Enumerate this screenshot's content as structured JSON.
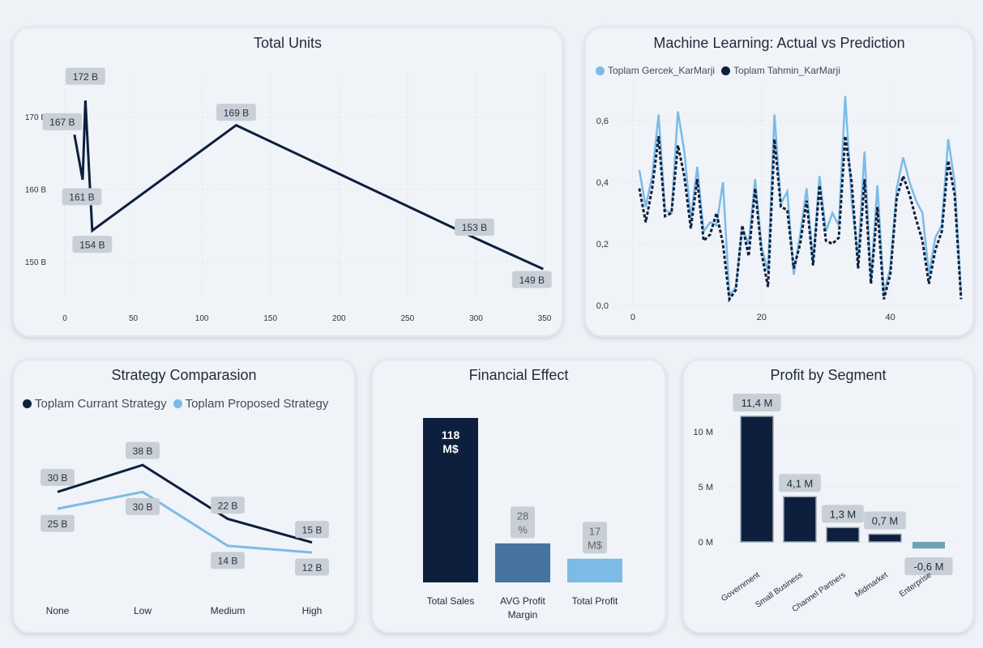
{
  "colors": {
    "dark": "#0d1f3c",
    "light": "#7bbbe6",
    "mid": "#46739f",
    "neg": "#6da3b4",
    "label_bg": "#c9cfd7",
    "grid": "#cfd5de"
  },
  "total_units": {
    "title": "Total Units",
    "chart_data": {
      "type": "line",
      "x": [
        7,
        13,
        15,
        20,
        125,
        300,
        349
      ],
      "y": [
        167.5,
        161.3,
        172.2,
        154.3,
        168.8,
        153.2,
        149.0
      ],
      "data_labels": [
        "167 B",
        "161 B",
        "172 B",
        "154 B",
        "169 B",
        "153 B",
        "149 B"
      ],
      "x_ticks": [
        "0",
        "50",
        "100",
        "150",
        "200",
        "250",
        "300",
        "350"
      ],
      "y_ticks": [
        "150 B",
        "160 B",
        "170 B"
      ],
      "xlim": [
        0,
        350
      ],
      "ylim": [
        145,
        175
      ]
    }
  },
  "ml": {
    "title": "Machine Learning: Actual vs Prediction",
    "legend": [
      {
        "name": "Toplam Gercek_KarMarji",
        "color": "#7bbbe6"
      },
      {
        "name": "Toplam Tahmin_KarMarji",
        "color": "#0d1f3c"
      }
    ],
    "chart_data": {
      "type": "line",
      "x_ticks": [
        "0",
        "20",
        "40"
      ],
      "y_ticks": [
        "0,0",
        "0,2",
        "0,4",
        "0,6"
      ],
      "xlim": [
        -1,
        50
      ],
      "ylim": [
        0,
        0.7
      ],
      "series": [
        {
          "name": "Toplam Gercek_KarMarji",
          "values": [
            0.44,
            0.32,
            0.42,
            0.62,
            0.31,
            0.3,
            0.63,
            0.5,
            0.28,
            0.45,
            0.24,
            0.27,
            0.26,
            0.4,
            0.03,
            0.06,
            0.25,
            0.2,
            0.41,
            0.19,
            0.11,
            0.62,
            0.33,
            0.37,
            0.1,
            0.23,
            0.38,
            0.14,
            0.42,
            0.24,
            0.3,
            0.26,
            0.68,
            0.34,
            0.15,
            0.5,
            0.08,
            0.39,
            0.04,
            0.12,
            0.38,
            0.48,
            0.4,
            0.34,
            0.3,
            0.1,
            0.22,
            0.26,
            0.54,
            0.4,
            0.04
          ]
        },
        {
          "name": "Toplam Tahmin_KarMarji",
          "values": [
            0.38,
            0.27,
            0.38,
            0.55,
            0.29,
            0.3,
            0.52,
            0.42,
            0.25,
            0.41,
            0.21,
            0.23,
            0.3,
            0.2,
            0.02,
            0.05,
            0.26,
            0.16,
            0.38,
            0.17,
            0.06,
            0.54,
            0.32,
            0.31,
            0.12,
            0.2,
            0.34,
            0.13,
            0.39,
            0.21,
            0.2,
            0.22,
            0.55,
            0.4,
            0.12,
            0.41,
            0.07,
            0.32,
            0.02,
            0.1,
            0.35,
            0.42,
            0.36,
            0.28,
            0.21,
            0.07,
            0.18,
            0.24,
            0.47,
            0.36,
            0.02
          ]
        }
      ]
    }
  },
  "strategy": {
    "title": "Strategy Comparasion",
    "legend": [
      {
        "name": "Toplam Currant Strategy",
        "color": "#0d1f3c"
      },
      {
        "name": "Toplam Proposed Strategy",
        "color": "#7bbbe6"
      }
    ],
    "chart_data": {
      "type": "line",
      "categories": [
        "None",
        "Low",
        "Medium",
        "High"
      ],
      "ylim": [
        0,
        45
      ],
      "series": [
        {
          "name": "Toplam Currant Strategy",
          "values": [
            30,
            38,
            22,
            15
          ],
          "labels": [
            "30 B",
            "38 B",
            "22 B",
            "15 B"
          ]
        },
        {
          "name": "Toplam Proposed Strategy",
          "values": [
            25,
            30,
            14,
            12
          ],
          "labels": [
            "25 B",
            "30 B",
            "14 B",
            "12 B"
          ]
        }
      ]
    }
  },
  "financial": {
    "title": "Financial Effect",
    "chart_data": {
      "type": "bar",
      "categories": [
        "Total Sales",
        "AVG Profit Margin",
        "Total Profit"
      ],
      "category_lines": [
        [
          "Total Sales"
        ],
        [
          "AVG Profit",
          "Margin"
        ],
        [
          "Total Profit"
        ]
      ],
      "values": [
        118,
        28,
        17
      ],
      "labels": [
        [
          "118",
          "M$"
        ],
        [
          "28",
          "%"
        ],
        [
          "17",
          "M$"
        ]
      ],
      "colors": [
        "#0d1f3c",
        "#46739f",
        "#7bbbe6"
      ]
    }
  },
  "segment": {
    "title": "Profit by Segment",
    "chart_data": {
      "type": "bar",
      "categories": [
        "Government",
        "Small Business",
        "Channel Partners",
        "Midmarket",
        "Enterprise"
      ],
      "values": [
        11.4,
        4.1,
        1.3,
        0.7,
        -0.6
      ],
      "labels": [
        "11,4 M",
        "4,1 M",
        "1,3 M",
        "0,7 M",
        "-0,6 M"
      ],
      "y_ticks": [
        "0 M",
        "5 M",
        "10 M"
      ],
      "ylim": [
        -1,
        13
      ]
    }
  }
}
